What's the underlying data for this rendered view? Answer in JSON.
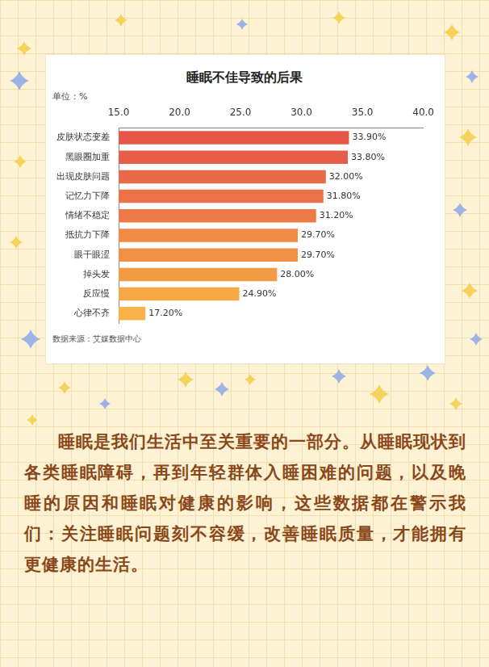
{
  "chart_data": {
    "type": "bar",
    "orientation": "horizontal",
    "title": "睡眠不佳导致的后果",
    "subtitle": "单位：%",
    "source": "数据来源：艾媒数据中心",
    "categories": [
      "皮肤状态变差",
      "黑眼圈加重",
      "出现皮肤问题",
      "记忆力下降",
      "情绪不稳定",
      "抵抗力下降",
      "眼干眼涩",
      "掉头发",
      "反应慢",
      "心律不齐"
    ],
    "values": [
      33.9,
      33.8,
      32.0,
      31.8,
      31.2,
      29.7,
      29.7,
      28.0,
      24.9,
      17.2
    ],
    "value_labels": [
      "33.90%",
      "33.80%",
      "32.00%",
      "31.80%",
      "31.20%",
      "29.70%",
      "29.70%",
      "28.00%",
      "24.90%",
      "17.20%"
    ],
    "colors": [
      "#e6574a",
      "#e75d4a",
      "#e96a49",
      "#eb7148",
      "#ed7a47",
      "#f08a45",
      "#f19044",
      "#f39c44",
      "#f5a846",
      "#f7b24a"
    ],
    "xlim": [
      15,
      40
    ],
    "xticks": [
      {
        "value": 15,
        "label": "15.0"
      },
      {
        "value": 20,
        "label": "20.0"
      },
      {
        "value": 25,
        "label": "25.0"
      },
      {
        "value": 30,
        "label": "30.0"
      },
      {
        "value": 35,
        "label": "35.0"
      },
      {
        "value": 40,
        "label": "40.0"
      }
    ],
    "grid": false,
    "data_labels": true,
    "tick_labels": true
  },
  "caption": "睡眠是我们生活中至关重要的一部分。从睡眠现状到各类睡眠障碍，再到年轻群体入睡困难的问题，以及晚睡的原因和睡眠对健康的影响，这些数据都在警示我们：关注睡眠问题刻不容缓，改善睡眠质量，才能拥有更健康的生活。"
}
